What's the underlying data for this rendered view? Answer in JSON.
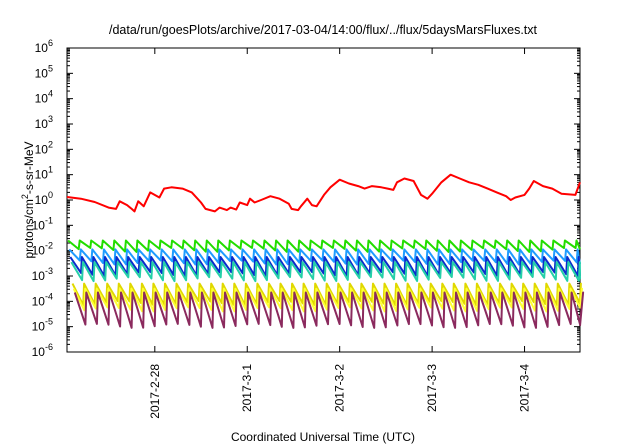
{
  "chart_data": {
    "type": "line",
    "title": "/data/run/goesPlots/archive/2017-03-04/14:00/flux/../flux/5daysMarsFluxes.txt",
    "xlabel": "Coordinated Universal Time (UTC)",
    "ylabel": {
      "prefix": "protons/cm",
      "sup": "2",
      "suffix": "-s-sr-MeV"
    },
    "y_scale": "log",
    "y_ticks": [
      {
        "base": "10",
        "exp": "-6",
        "value": -6
      },
      {
        "base": "10",
        "exp": "-5",
        "value": -5
      },
      {
        "base": "10",
        "exp": "-4",
        "value": -4
      },
      {
        "base": "10",
        "exp": "-3",
        "value": -3
      },
      {
        "base": "10",
        "exp": "-2",
        "value": -2
      },
      {
        "base": "10",
        "exp": "-1",
        "value": -1
      },
      {
        "base": "10",
        "exp": "0",
        "value": 0
      },
      {
        "base": "10",
        "exp": "1",
        "value": 1
      },
      {
        "base": "10",
        "exp": "2",
        "value": 2
      },
      {
        "base": "10",
        "exp": "3",
        "value": 3
      },
      {
        "base": "10",
        "exp": "4",
        "value": 4
      },
      {
        "base": "10",
        "exp": "5",
        "value": 5
      },
      {
        "base": "10",
        "exp": "6",
        "value": 6
      }
    ],
    "ylim_log10": [
      -6,
      6
    ],
    "xlim_days": [
      -0.95,
      4.6
    ],
    "x_ticks": [
      {
        "label": "2017-2-28",
        "day": 0
      },
      {
        "label": "2017-3-1",
        "day": 1
      },
      {
        "label": "2017-3-2",
        "day": 2
      },
      {
        "label": "2017-3-3",
        "day": 3
      },
      {
        "label": "2017-3-4",
        "day": 4
      }
    ],
    "grid": false,
    "legend": "none",
    "series": [
      {
        "color": "#ff0000",
        "points_log10": [
          [
            -0.95,
            0.12
          ],
          [
            -0.8,
            0.05
          ],
          [
            -0.65,
            -0.08
          ],
          [
            -0.5,
            -0.3
          ],
          [
            -0.42,
            -0.35
          ],
          [
            -0.38,
            -0.05
          ],
          [
            -0.3,
            -0.2
          ],
          [
            -0.25,
            -0.35
          ],
          [
            -0.22,
            -0.45
          ],
          [
            -0.18,
            -0.05
          ],
          [
            -0.12,
            -0.25
          ],
          [
            -0.05,
            0.3
          ],
          [
            0.05,
            0.1
          ],
          [
            0.1,
            0.45
          ],
          [
            0.18,
            0.5
          ],
          [
            0.3,
            0.45
          ],
          [
            0.4,
            0.3
          ],
          [
            0.5,
            -0.1
          ],
          [
            0.55,
            -0.35
          ],
          [
            0.65,
            -0.45
          ],
          [
            0.7,
            -0.3
          ],
          [
            0.78,
            -0.4
          ],
          [
            0.82,
            -0.3
          ],
          [
            0.88,
            -0.38
          ],
          [
            0.92,
            -0.1
          ],
          [
            1.0,
            -0.2
          ],
          [
            1.03,
            0.05
          ],
          [
            1.08,
            -0.1
          ],
          [
            1.15,
            0.0
          ],
          [
            1.25,
            0.15
          ],
          [
            1.35,
            0.05
          ],
          [
            1.45,
            -0.15
          ],
          [
            1.48,
            -0.35
          ],
          [
            1.55,
            -0.4
          ],
          [
            1.58,
            -0.25
          ],
          [
            1.65,
            0.05
          ],
          [
            1.7,
            -0.2
          ],
          [
            1.75,
            -0.25
          ],
          [
            1.83,
            0.2
          ],
          [
            1.9,
            0.5
          ],
          [
            2.0,
            0.8
          ],
          [
            2.1,
            0.65
          ],
          [
            2.2,
            0.55
          ],
          [
            2.27,
            0.45
          ],
          [
            2.35,
            0.55
          ],
          [
            2.45,
            0.5
          ],
          [
            2.52,
            0.45
          ],
          [
            2.58,
            0.4
          ],
          [
            2.62,
            0.7
          ],
          [
            2.7,
            0.85
          ],
          [
            2.8,
            0.75
          ],
          [
            2.88,
            0.2
          ],
          [
            2.95,
            0.05
          ],
          [
            3.0,
            0.25
          ],
          [
            3.1,
            0.7
          ],
          [
            3.2,
            1.0
          ],
          [
            3.3,
            0.85
          ],
          [
            3.4,
            0.7
          ],
          [
            3.5,
            0.6
          ],
          [
            3.6,
            0.45
          ],
          [
            3.7,
            0.3
          ],
          [
            3.8,
            0.15
          ],
          [
            3.85,
            0.0
          ],
          [
            3.9,
            0.1
          ],
          [
            4.0,
            0.2
          ],
          [
            4.05,
            0.45
          ],
          [
            4.1,
            0.75
          ],
          [
            4.2,
            0.55
          ],
          [
            4.3,
            0.45
          ],
          [
            4.4,
            0.25
          ],
          [
            4.55,
            0.2
          ],
          [
            4.6,
            0.7
          ]
        ]
      },
      {
        "color": "#22dd00",
        "base_log10": -1.6,
        "min_log10": -2.05
      },
      {
        "color": "#1f9cff",
        "base_log10": -1.95,
        "min_log10": -2.55
      },
      {
        "color": "#0a2ccc",
        "base_log10": -2.25,
        "min_log10": -3.0
      },
      {
        "color": "#25d0a8",
        "base_log10": -2.45,
        "min_log10": -3.2
      },
      {
        "color": "#e0d800",
        "base_log10": -3.3,
        "min_log10": -4.15
      },
      {
        "color": "#ffff33",
        "base_log10": -3.5,
        "min_log10": -4.4
      },
      {
        "color": "#8b2a5e",
        "base_log10": -3.65,
        "min_log10": -5.05
      }
    ]
  }
}
